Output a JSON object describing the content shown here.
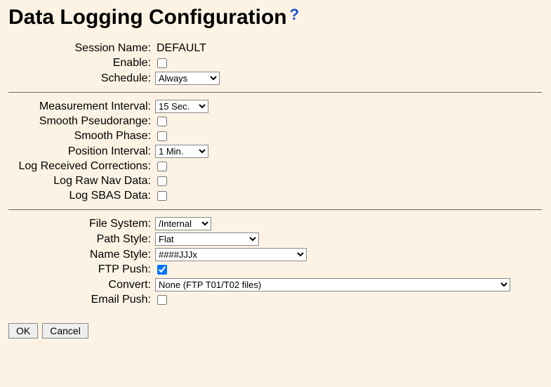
{
  "title": "Data Logging Configuration",
  "help_icon_glyph": "?",
  "sections": {
    "session": {
      "session_name_label": "Session Name:",
      "session_name_value": "DEFAULT",
      "enable_label": "Enable:",
      "enable_checked": false,
      "schedule_label": "Schedule:",
      "schedule_value": "Always"
    },
    "measurement": {
      "measurement_interval_label": "Measurement Interval:",
      "measurement_interval_value": "15 Sec.",
      "smooth_pseudorange_label": "Smooth Pseudorange:",
      "smooth_pseudorange_checked": false,
      "smooth_phase_label": "Smooth Phase:",
      "smooth_phase_checked": false,
      "position_interval_label": "Position Interval:",
      "position_interval_value": "1 Min.",
      "log_received_corrections_label": "Log Received Corrections:",
      "log_received_corrections_checked": false,
      "log_raw_nav_label": "Log Raw Nav Data:",
      "log_raw_nav_checked": false,
      "log_sbas_label": "Log SBAS Data:",
      "log_sbas_checked": false
    },
    "file": {
      "file_system_label": "File System:",
      "file_system_value": "/Internal",
      "path_style_label": "Path Style:",
      "path_style_value": "Flat",
      "name_style_label": "Name Style:",
      "name_style_value": "####JJJx",
      "ftp_push_label": "FTP Push:",
      "ftp_push_checked": true,
      "convert_label": "Convert:",
      "convert_value": "None (FTP T01/T02 files)",
      "email_push_label": "Email Push:",
      "email_push_checked": false
    }
  },
  "buttons": {
    "ok": "OK",
    "cancel": "Cancel"
  },
  "colors": {
    "background": "#fcf3e4",
    "text": "#000000",
    "help_icon": "#1a4fd6",
    "separator": "#666666"
  }
}
